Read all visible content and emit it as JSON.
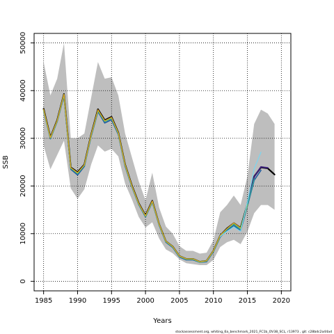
{
  "chart_data": {
    "type": "line",
    "xlabel": "Years",
    "ylabel": "SSB",
    "xlim": [
      1983.6,
      2021.4
    ],
    "ylim": [
      -2000,
      52000
    ],
    "x_ticks": [
      1985,
      1990,
      1995,
      2000,
      2005,
      2010,
      2015,
      2020
    ],
    "y_ticks": [
      0,
      10000,
      20000,
      30000,
      40000,
      50000
    ],
    "grid": "dotted",
    "footer": "stockassessment.org, whiting_6a_benchmark_2021_FC1b_OV38_SCL, r13973 , git: c28bdc2a44ad",
    "confidence_band": {
      "color": "#bebebe",
      "x": [
        1985,
        1986,
        1987,
        1988,
        1989,
        1990,
        1991,
        1992,
        1993,
        1994,
        1995,
        1996,
        1997,
        1998,
        1999,
        2000,
        2001,
        2002,
        2003,
        2004,
        2005,
        2006,
        2007,
        2008,
        2009,
        2010,
        2011,
        2012,
        2013,
        2014,
        2015,
        2016,
        2017,
        2018,
        2019
      ],
      "upper": [
        46000,
        39000,
        42500,
        50000,
        30000,
        30000,
        31000,
        38500,
        46000,
        42500,
        42800,
        39000,
        31000,
        26000,
        21000,
        17000,
        22800,
        15500,
        11500,
        10000,
        7400,
        6400,
        6400,
        5800,
        6000,
        8600,
        14500,
        16000,
        18000,
        16000,
        22000,
        33000,
        36000,
        35200,
        33000
      ],
      "lower": [
        28500,
        23500,
        26500,
        29500,
        19500,
        17300,
        19300,
        24500,
        28500,
        27200,
        27800,
        26200,
        20500,
        17200,
        13500,
        11300,
        12400,
        9000,
        6700,
        5900,
        4600,
        3800,
        3600,
        3400,
        3400,
        4500,
        7200,
        8200,
        8700,
        7800,
        10400,
        14300,
        16000,
        16000,
        15000
      ]
    },
    "series": [
      {
        "color": "#000000",
        "width": 2.2,
        "x": [
          1985,
          1986,
          1987,
          1988,
          1989,
          1990,
          1991,
          1992,
          1993,
          1994,
          1995,
          1996,
          1997,
          1998,
          1999,
          2000,
          2001,
          2002,
          2003,
          2004,
          2005,
          2006,
          2007,
          2008,
          2009,
          2010,
          2011,
          2012,
          2013,
          2014,
          2015,
          2016,
          2017,
          2018,
          2019
        ],
        "values": [
          36200,
          30200,
          33800,
          39300,
          23900,
          22900,
          24500,
          30800,
          36100,
          33800,
          34500,
          31200,
          24500,
          20100,
          16400,
          13800,
          16900,
          12000,
          8400,
          7300,
          5300,
          4700,
          4700,
          4100,
          4300,
          6400,
          9600,
          11100,
          12200,
          11200,
          16200,
          22000,
          23900,
          23700,
          22400
        ]
      },
      {
        "color": "#3b1f7a",
        "width": 2.0,
        "x": [
          2015,
          2016,
          2017,
          2018
        ],
        "values": [
          16400,
          21900,
          24000,
          23800
        ]
      },
      {
        "color": "#1e5aa0",
        "width": 1.6,
        "x": [
          1985,
          1986,
          1987,
          1988,
          1989,
          1990,
          1991,
          1992,
          1993,
          1994,
          1995,
          1996,
          1997,
          1998,
          1999,
          2000,
          2001,
          2002,
          2003,
          2004,
          2005,
          2006,
          2007,
          2008,
          2009,
          2010,
          2011,
          2012,
          2013,
          2014,
          2015,
          2016,
          2017
        ],
        "values": [
          35800,
          29900,
          33500,
          38900,
          23500,
          22300,
          24100,
          30400,
          35600,
          33200,
          33900,
          30800,
          24100,
          19800,
          16100,
          13500,
          16600,
          11800,
          8200,
          7100,
          5100,
          4500,
          4500,
          4000,
          4100,
          6200,
          9300,
          10700,
          11700,
          10600,
          15800,
          21200,
          23300
        ]
      },
      {
        "color": "#2e9e98",
        "width": 1.6,
        "x": [
          1985,
          1986,
          1987,
          1988,
          1989,
          1990,
          1991,
          1992,
          1993,
          1994,
          1995,
          1996,
          1997,
          1998,
          1999,
          2000,
          2001,
          2002,
          2003,
          2004,
          2005,
          2006,
          2007,
          2008,
          2009,
          2010,
          2011,
          2012,
          2013,
          2014,
          2015,
          2016
        ],
        "values": [
          35900,
          30000,
          33600,
          39100,
          23700,
          22600,
          24300,
          30600,
          35800,
          33500,
          34200,
          31000,
          24300,
          19900,
          16200,
          13600,
          16700,
          11900,
          8300,
          7200,
          5200,
          4600,
          4600,
          4000,
          4200,
          6300,
          9400,
          10900,
          11900,
          10900,
          16000,
          21500
        ]
      },
      {
        "color": "#7fbf4a",
        "width": 1.6,
        "x": [
          1985,
          1986,
          1987,
          1988,
          1989,
          1990,
          1991,
          1992,
          1993,
          1994,
          1995,
          1996,
          1997,
          1998,
          1999,
          2000,
          2001,
          2002,
          2003,
          2004,
          2005,
          2006,
          2007,
          2008,
          2009,
          2010,
          2011,
          2012,
          2013,
          2014,
          2015
        ],
        "values": [
          36000,
          30100,
          33700,
          39200,
          23800,
          22700,
          24400,
          30700,
          35900,
          33600,
          34300,
          31100,
          24400,
          20000,
          16300,
          13700,
          16800,
          12000,
          8400,
          7300,
          5300,
          4700,
          4700,
          4100,
          4300,
          6400,
          9600,
          11000,
          12200,
          11100,
          16100
        ]
      },
      {
        "color": "#f0a020",
        "width": 1.0,
        "x": [
          1985,
          1986,
          1987,
          1988,
          1989,
          1990,
          1991,
          1992,
          1993,
          1994,
          1995,
          1996,
          1997,
          1998,
          1999,
          2000,
          2001,
          2002,
          2003,
          2004,
          2005,
          2006,
          2007,
          2008,
          2009,
          2010,
          2011,
          2012,
          2013,
          2014
        ],
        "values": [
          36100,
          30150,
          33750,
          39250,
          23850,
          22800,
          24450,
          30750,
          36000,
          33700,
          34400,
          31150,
          24450,
          20050,
          16350,
          13750,
          16850,
          12000,
          8400,
          7300,
          5300,
          4700,
          4700,
          4100,
          4300,
          6400,
          9600,
          11050,
          12250,
          11200
        ]
      },
      {
        "color": "#7ad6f0",
        "width": 1.2,
        "x": [
          2011,
          2012,
          2013,
          2014,
          2015,
          2016,
          2017
        ],
        "values": [
          9400,
          10500,
          11400,
          10500,
          16600,
          23600,
          27100
        ]
      }
    ]
  }
}
